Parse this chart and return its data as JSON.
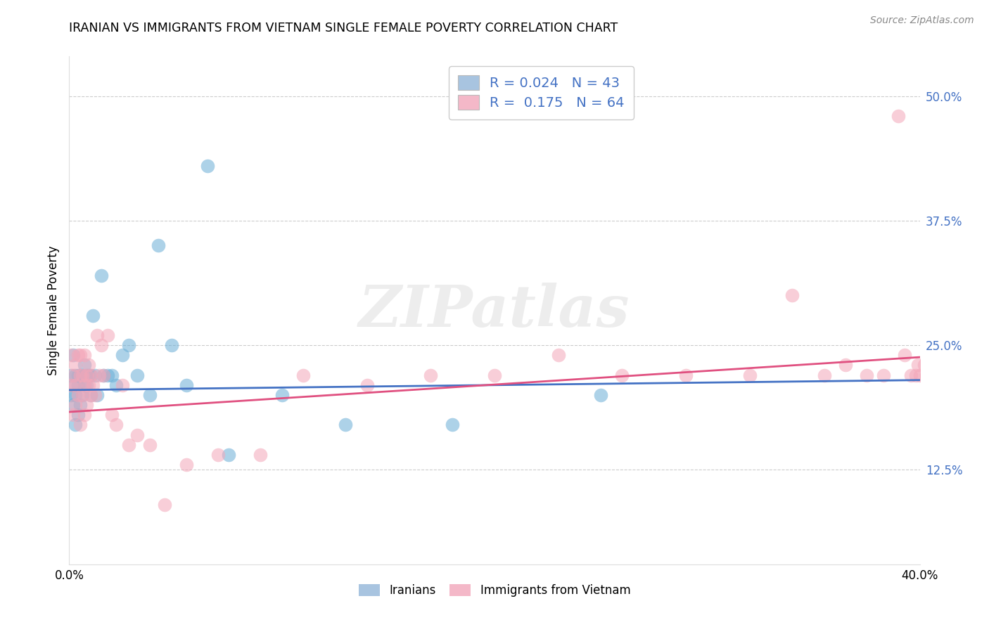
{
  "title": "IRANIAN VS IMMIGRANTS FROM VIETNAM SINGLE FEMALE POVERTY CORRELATION CHART",
  "source": "Source: ZipAtlas.com",
  "ylabel": "Single Female Poverty",
  "ytick_labels": [
    "12.5%",
    "25.0%",
    "37.5%",
    "50.0%"
  ],
  "ytick_values": [
    0.125,
    0.25,
    0.375,
    0.5
  ],
  "xlim": [
    0.0,
    0.4
  ],
  "ylim": [
    0.03,
    0.54
  ],
  "legend_label1": "R = 0.024   N = 43",
  "legend_label2": "R =  0.175   N = 64",
  "legend_color1": "#a8c4e0",
  "legend_color2": "#f4b8c8",
  "watermark": "ZIPatlas",
  "blue_color": "#6baed6",
  "pink_color": "#f4a7b9",
  "blue_line_color": "#4472c4",
  "pink_line_color": "#e05080",
  "bottom_label1": "Iranians",
  "bottom_label2": "Immigrants from Vietnam",
  "iranians_x": [
    0.001,
    0.001,
    0.002,
    0.002,
    0.002,
    0.003,
    0.003,
    0.003,
    0.004,
    0.004,
    0.004,
    0.005,
    0.005,
    0.006,
    0.006,
    0.007,
    0.007,
    0.008,
    0.008,
    0.009,
    0.01,
    0.01,
    0.011,
    0.012,
    0.013,
    0.015,
    0.016,
    0.018,
    0.02,
    0.022,
    0.025,
    0.028,
    0.032,
    0.038,
    0.042,
    0.048,
    0.055,
    0.065,
    0.075,
    0.1,
    0.13,
    0.18,
    0.25
  ],
  "iranians_y": [
    0.2,
    0.22,
    0.19,
    0.24,
    0.21,
    0.17,
    0.22,
    0.2,
    0.18,
    0.22,
    0.21,
    0.22,
    0.19,
    0.2,
    0.22,
    0.21,
    0.23,
    0.22,
    0.21,
    0.22,
    0.22,
    0.2,
    0.28,
    0.22,
    0.2,
    0.32,
    0.22,
    0.22,
    0.22,
    0.21,
    0.24,
    0.25,
    0.22,
    0.2,
    0.35,
    0.25,
    0.21,
    0.43,
    0.14,
    0.2,
    0.17,
    0.17,
    0.2
  ],
  "vietnam_x": [
    0.001,
    0.001,
    0.002,
    0.002,
    0.003,
    0.003,
    0.003,
    0.004,
    0.004,
    0.005,
    0.005,
    0.005,
    0.006,
    0.006,
    0.007,
    0.007,
    0.007,
    0.008,
    0.008,
    0.009,
    0.009,
    0.01,
    0.01,
    0.011,
    0.012,
    0.013,
    0.014,
    0.015,
    0.016,
    0.018,
    0.02,
    0.022,
    0.025,
    0.028,
    0.032,
    0.038,
    0.045,
    0.055,
    0.07,
    0.09,
    0.11,
    0.14,
    0.17,
    0.2,
    0.23,
    0.26,
    0.29,
    0.32,
    0.34,
    0.355,
    0.365,
    0.375,
    0.383,
    0.39,
    0.393,
    0.396,
    0.398,
    0.399,
    0.4,
    0.402,
    0.403,
    0.404,
    0.405,
    0.406
  ],
  "vietnam_y": [
    0.21,
    0.24,
    0.18,
    0.22,
    0.19,
    0.23,
    0.21,
    0.2,
    0.24,
    0.17,
    0.22,
    0.24,
    0.2,
    0.22,
    0.18,
    0.21,
    0.24,
    0.22,
    0.19,
    0.21,
    0.23,
    0.2,
    0.22,
    0.21,
    0.2,
    0.26,
    0.22,
    0.25,
    0.22,
    0.26,
    0.18,
    0.17,
    0.21,
    0.15,
    0.16,
    0.15,
    0.09,
    0.13,
    0.14,
    0.14,
    0.22,
    0.21,
    0.22,
    0.22,
    0.24,
    0.22,
    0.22,
    0.22,
    0.3,
    0.22,
    0.23,
    0.22,
    0.22,
    0.48,
    0.24,
    0.22,
    0.22,
    0.23,
    0.22,
    0.23,
    0.22,
    0.23,
    0.24,
    0.22
  ]
}
